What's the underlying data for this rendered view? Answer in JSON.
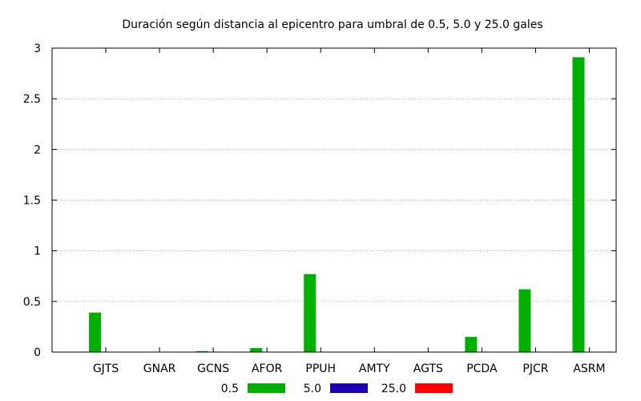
{
  "chart_data": {
    "type": "bar",
    "title": "Duración según distancia al epicentro para umbral de 0.5, 5.0 y 25.0 gales",
    "xlabel": "",
    "ylabel": "",
    "ylim": [
      0,
      3
    ],
    "yticks": [
      0,
      0.5,
      1,
      1.5,
      2,
      2.5,
      3
    ],
    "ytick_labels": [
      "0",
      "0.5",
      "1",
      "1.5",
      "2",
      "2.5",
      "3"
    ],
    "grid": true,
    "legend_position": "bottom",
    "categories": [
      "GJTS",
      "GNAR",
      "GCNS",
      "AFOR",
      "PPUH",
      "AMTY",
      "AGTS",
      "PCDA",
      "PJCR",
      "ASRM"
    ],
    "series": [
      {
        "name": "0.5",
        "color": "#00b000",
        "values": [
          0.39,
          0,
          0.01,
          0.04,
          0.77,
          0,
          0,
          0.15,
          0.62,
          2.91
        ]
      },
      {
        "name": "5.0",
        "color": "#1a00b0",
        "values": [
          0,
          0,
          0,
          0,
          0,
          0,
          0,
          0,
          0,
          0
        ]
      },
      {
        "name": "25.0",
        "color": "#ff0000",
        "values": [
          0,
          0,
          0,
          0,
          0,
          0,
          0,
          0,
          0,
          0
        ]
      }
    ]
  }
}
